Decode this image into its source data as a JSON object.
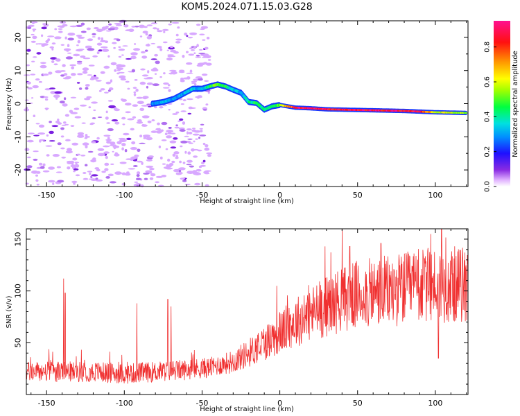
{
  "title": "KOM5.2024.071.15.03.G28",
  "chart_data": [
    {
      "type": "heatmap",
      "xlabel": "Height of straight line (km)",
      "ylabel": "Frequency (Hz)",
      "xlim": [
        -163,
        121
      ],
      "ylim": [
        -25,
        25
      ],
      "xticks": [
        -150,
        -100,
        -50,
        0,
        50,
        100
      ],
      "yticks": [
        -20,
        -10,
        0,
        10,
        20
      ],
      "colorbar": {
        "label": "Normalized spectral amplitude",
        "range": [
          0,
          0.95
        ],
        "ticks": [
          0.0,
          0.2,
          0.4,
          0.6,
          0.8
        ]
      },
      "ridge_trace": {
        "x": [
          -82,
          -75,
          -68,
          -62,
          -56,
          -50,
          -45,
          -40,
          -35,
          -30,
          -25,
          -20,
          -15,
          -10,
          -5,
          0,
          10,
          20,
          30,
          40,
          50,
          60,
          70,
          80,
          90,
          100,
          110,
          120
        ],
        "y": [
          0,
          0.5,
          1.5,
          3,
          4.5,
          4.5,
          5.2,
          5.8,
          5.2,
          4.2,
          3.3,
          0.5,
          0.2,
          -1.8,
          -0.8,
          -0.4,
          -1.2,
          -1.4,
          -1.7,
          -1.8,
          -1.9,
          -2.0,
          -2.1,
          -2.2,
          -2.4,
          -2.6,
          -2.7,
          -2.8
        ],
        "amplitude": [
          0.3,
          0.3,
          0.3,
          0.3,
          0.35,
          0.3,
          0.45,
          0.5,
          0.45,
          0.35,
          0.3,
          0.4,
          0.45,
          0.4,
          0.4,
          0.55,
          0.85,
          0.9,
          0.9,
          0.9,
          0.9,
          0.9,
          0.9,
          0.9,
          0.85,
          0.6,
          0.6,
          0.55
        ]
      }
    },
    {
      "type": "line",
      "xlabel": "Height of straight line (km)",
      "ylabel": "SNR (v/v)",
      "xlim": [
        -163,
        121
      ],
      "ylim": [
        0,
        160
      ],
      "xticks": [
        -150,
        -100,
        -50,
        0,
        50,
        100
      ],
      "yticks": [
        50,
        100,
        150
      ],
      "series": [
        {
          "color": "#f03030",
          "baseline": {
            "x": [
              -163,
              -140,
              -120,
              -100,
              -80,
              -60,
              -45,
              -30,
              -20,
              -10,
              0,
              10,
              20,
              30,
              40,
              50,
              60,
              70,
              80,
              90,
              100,
              110,
              121
            ],
            "y": [
              22,
              22,
              22,
              20,
              22,
              24,
              26,
              32,
              40,
              50,
              60,
              70,
              78,
              85,
              92,
              96,
              98,
              100,
              102,
              104,
              106,
              106,
              106
            ]
          },
          "spikes": [
            {
              "x": -139,
              "y": 112
            },
            {
              "x": -138,
              "y": 98
            },
            {
              "x": -92,
              "y": 88
            },
            {
              "x": -72,
              "y": 92
            },
            {
              "x": -70,
              "y": 85
            },
            {
              "x": -2,
              "y": 105
            },
            {
              "x": 29,
              "y": 143
            },
            {
              "x": 45,
              "y": 143
            },
            {
              "x": 65,
              "y": 146
            },
            {
              "x": 97,
              "y": 155
            },
            {
              "x": 104,
              "y": 162
            },
            {
              "x": 102,
              "y": 35
            }
          ]
        }
      ]
    }
  ]
}
